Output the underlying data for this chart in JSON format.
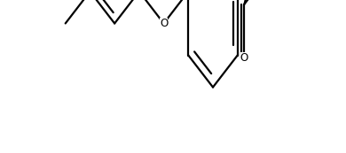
{
  "bg_color": "#ffffff",
  "line_color": "#000000",
  "line_width": 1.6,
  "font_size": 8.5,
  "figsize": [
    3.9,
    1.73
  ],
  "dpi": 100
}
